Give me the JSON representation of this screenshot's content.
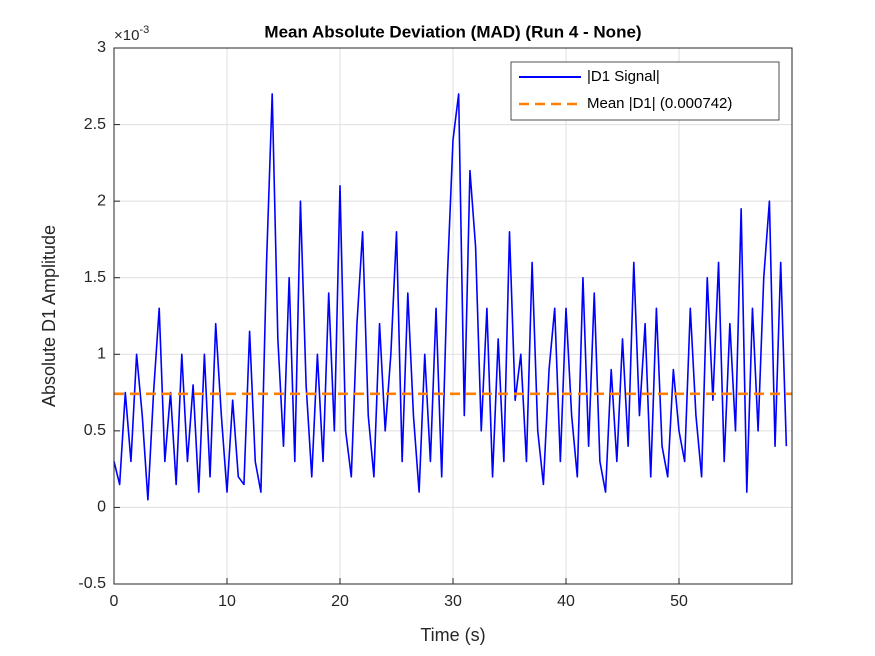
{
  "chart_data": {
    "type": "line",
    "title": "Mean Absolute Deviation (MAD) (Run 4 - None)",
    "x_label": "Time (s)",
    "y_label": "Absolute D1 Amplitude",
    "y_multiplier_base": "×10",
    "y_multiplier_exp": "-3",
    "x": [
      0,
      0.5,
      1,
      1.5,
      2,
      2.5,
      3,
      3.5,
      4,
      4.5,
      5,
      5.5,
      6,
      6.5,
      7,
      7.5,
      8,
      8.5,
      9,
      9.5,
      10,
      10.5,
      11,
      11.5,
      12,
      12.5,
      13,
      13.5,
      14,
      14.5,
      15,
      15.5,
      16,
      16.5,
      17,
      17.5,
      18,
      18.5,
      19,
      19.5,
      20,
      20.5,
      21,
      21.5,
      22,
      22.5,
      23,
      23.5,
      24,
      24.5,
      25,
      25.5,
      26,
      26.5,
      27,
      27.5,
      28,
      28.5,
      29,
      29.5,
      30,
      30.5,
      31,
      31.5,
      32,
      32.5,
      33,
      33.5,
      34,
      34.5,
      35,
      35.5,
      36,
      36.5,
      37,
      37.5,
      38,
      38.5,
      39,
      39.5,
      40,
      40.5,
      41,
      41.5,
      42,
      42.5,
      43,
      43.5,
      44,
      44.5,
      45,
      45.5,
      46,
      46.5,
      47,
      47.5,
      48,
      48.5,
      49,
      49.5,
      50,
      50.5,
      51,
      51.5,
      52,
      52.5,
      53,
      53.5,
      54,
      54.5,
      55,
      55.5,
      56,
      56.5,
      57,
      57.5,
      58,
      58.5,
      59,
      59.5
    ],
    "series": [
      {
        "name": "|D1 Signal|",
        "color": "#0000ff",
        "values": [
          0.3,
          0.15,
          0.75,
          0.3,
          1.0,
          0.6,
          0.05,
          0.75,
          1.3,
          0.3,
          0.75,
          0.15,
          1.0,
          0.3,
          0.8,
          0.1,
          1.0,
          0.2,
          1.2,
          0.6,
          0.1,
          0.7,
          0.2,
          0.15,
          1.15,
          0.3,
          0.1,
          1.6,
          2.7,
          1.1,
          0.4,
          1.5,
          0.3,
          2.0,
          0.8,
          0.2,
          1.0,
          0.3,
          1.4,
          0.5,
          2.1,
          0.5,
          0.2,
          1.2,
          1.8,
          0.6,
          0.2,
          1.2,
          0.5,
          1.0,
          1.8,
          0.3,
          1.4,
          0.6,
          0.1,
          1.0,
          0.3,
          1.3,
          0.2,
          1.5,
          2.4,
          2.7,
          0.6,
          2.2,
          1.7,
          0.5,
          1.3,
          0.2,
          1.1,
          0.3,
          1.8,
          0.7,
          1.0,
          0.3,
          1.6,
          0.5,
          0.15,
          0.9,
          1.3,
          0.3,
          1.3,
          0.6,
          0.2,
          1.5,
          0.4,
          1.4,
          0.3,
          0.1,
          0.9,
          0.3,
          1.1,
          0.4,
          1.6,
          0.6,
          1.2,
          0.2,
          1.3,
          0.4,
          0.2,
          0.9,
          0.5,
          0.3,
          1.3,
          0.6,
          0.2,
          1.5,
          0.7,
          1.6,
          0.3,
          1.2,
          0.5,
          1.95,
          0.1,
          1.3,
          0.5,
          1.5,
          2.0,
          0.4,
          1.6,
          0.4
        ]
      }
    ],
    "mean_line": {
      "name": "Mean |D1| (0.000742)",
      "value": 0.742,
      "color": "#ff8000",
      "style": "dashed"
    },
    "xlim": [
      0,
      60
    ],
    "xticks": [
      0,
      10,
      20,
      30,
      40,
      50
    ],
    "ylim": [
      -0.5,
      3
    ],
    "yticks": [
      -0.5,
      0,
      0.5,
      1,
      1.5,
      2,
      2.5,
      3
    ],
    "grid": true,
    "legend": "top-right"
  }
}
